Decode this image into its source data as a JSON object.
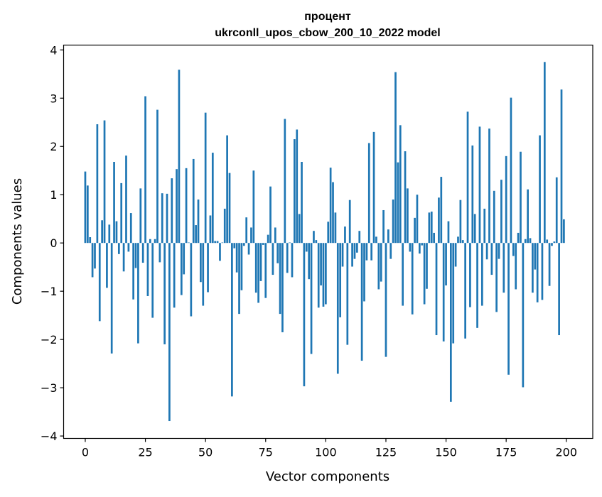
{
  "chart_data": {
    "type": "bar",
    "title_line1": "процент",
    "title_line2": "ukrconll_upos_cbow_200_10_2022 model",
    "xlabel": "Vector components",
    "ylabel": "Components values",
    "xlim": [
      -9,
      211
    ],
    "ylim": [
      -4.05,
      4.1
    ],
    "xticks": [
      0,
      25,
      50,
      75,
      100,
      125,
      150,
      175,
      200
    ],
    "yticks": [
      -4,
      -3,
      -2,
      -1,
      0,
      1,
      2,
      3,
      4
    ],
    "ytick_labels": [
      "−4",
      "−3",
      "−2",
      "−1",
      "0",
      "1",
      "2",
      "3",
      "4"
    ],
    "grid": false,
    "color": "#1f77b4",
    "values": [
      1.48,
      1.19,
      0.12,
      -0.71,
      -0.53,
      2.46,
      -1.62,
      0.47,
      2.54,
      -0.93,
      0.38,
      -2.29,
      1.68,
      0.45,
      -0.23,
      1.24,
      -0.59,
      1.81,
      -0.18,
      0.62,
      -1.17,
      -0.52,
      -2.08,
      1.13,
      -0.41,
      3.04,
      -1.1,
      0.08,
      -1.55,
      0.08,
      2.76,
      -0.4,
      1.03,
      -2.1,
      1.02,
      -3.69,
      1.34,
      -1.34,
      1.53,
      3.59,
      -1.08,
      -0.65,
      1.55,
      0.01,
      -1.52,
      1.74,
      0.37,
      0.9,
      -0.81,
      -1.3,
      2.7,
      -1.02,
      0.57,
      1.87,
      0.04,
      0.04,
      -0.37,
      0.01,
      0.71,
      2.23,
      1.45,
      -3.18,
      -0.11,
      -0.61,
      -1.47,
      -0.98,
      -0.06,
      0.53,
      -0.24,
      0.32,
      1.5,
      -1.03,
      -1.24,
      -0.79,
      -0.04,
      -1.14,
      0.17,
      1.17,
      -0.66,
      0.32,
      -0.42,
      -1.47,
      -1.85,
      2.57,
      -0.62,
      0.01,
      -0.71,
      2.15,
      2.35,
      0.6,
      1.68,
      -2.97,
      -0.18,
      -0.75,
      -2.3,
      0.25,
      0.06,
      -1.34,
      -0.88,
      -1.32,
      -1.27,
      0.44,
      1.56,
      1.26,
      0.63,
      -2.71,
      -1.54,
      -0.49,
      0.34,
      -2.11,
      0.89,
      -0.49,
      -0.33,
      -0.2,
      0.25,
      -2.44,
      -1.21,
      -0.36,
      2.07,
      -0.36,
      2.3,
      0.13,
      -0.96,
      -0.8,
      0.68,
      -2.36,
      0.28,
      -0.33,
      0.9,
      3.54,
      1.67,
      2.44,
      -1.3,
      1.9,
      1.13,
      -0.18,
      -1.48,
      0.52,
      1.0,
      -0.22,
      -0.05,
      -1.27,
      -0.95,
      0.63,
      0.65,
      0.21,
      -1.91,
      0.94,
      1.37,
      -2.04,
      -0.88,
      0.45,
      -3.29,
      -2.08,
      -0.49,
      0.13,
      0.89,
      0.06,
      -1.98,
      2.72,
      -1.33,
      2.02,
      0.6,
      -1.76,
      2.41,
      -1.3,
      0.71,
      -0.34,
      2.37,
      -0.66,
      1.08,
      -1.43,
      -0.33,
      1.31,
      -1.03,
      1.8,
      -2.73,
      3.01,
      -0.27,
      -0.96,
      0.21,
      1.89,
      -2.99,
      0.08,
      1.11,
      0.1,
      -1.03,
      -0.55,
      -1.23,
      2.23,
      -1.18,
      3.75,
      0.07,
      -0.89,
      -0.06,
      0.03,
      1.36,
      -1.91,
      3.18,
      0.49
    ]
  }
}
